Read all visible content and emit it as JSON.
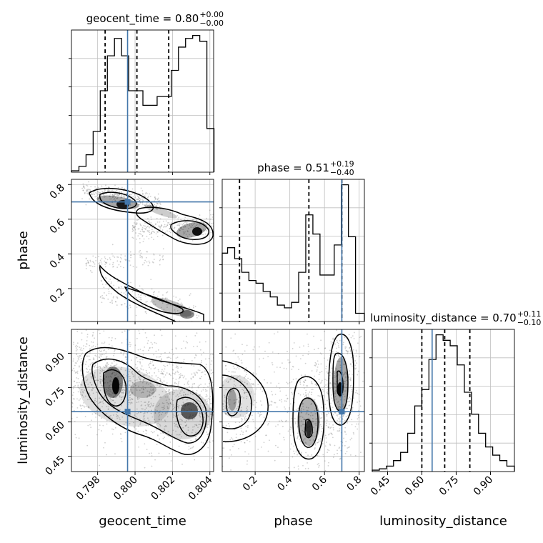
{
  "chart_data": {
    "type": "corner",
    "parameters": [
      "geocent_time",
      "phase",
      "luminosity_distance"
    ],
    "grid": true,
    "truth_color": "#4477aa",
    "truths": {
      "geocent_time": 0.7996,
      "phase": 0.7,
      "luminosity_distance": 0.645
    },
    "titles": [
      {
        "param": "geocent_time",
        "name": "geocent_time",
        "median": "0.80",
        "plus": "+0.00",
        "minus": "−0.00"
      },
      {
        "param": "phase",
        "name": "phase",
        "median": "0.51",
        "plus": "+0.19",
        "minus": "−0.40"
      },
      {
        "param": "luminosity_distance",
        "name": "luminosity_distance",
        "median": "0.70",
        "plus": "+0.11",
        "minus": "−0.10"
      }
    ],
    "ranges": {
      "geocent_time": [
        0.7966,
        0.8042
      ],
      "phase": [
        0.01,
        0.83
      ],
      "luminosity_distance": [
        0.383,
        1.005
      ]
    },
    "ticks": {
      "geocent_time": {
        "values": [
          0.798,
          0.8,
          0.802,
          0.804
        ],
        "labels": [
          "0.798",
          "0.800",
          "0.802",
          "0.804"
        ]
      },
      "phase": {
        "values": [
          0.2,
          0.4,
          0.6,
          0.8
        ],
        "labels": [
          "0.2",
          "0.4",
          "0.6",
          "0.8"
        ]
      },
      "luminosity_distance": {
        "values": [
          0.45,
          0.6,
          0.75,
          0.9
        ],
        "labels": [
          "0.45",
          "0.60",
          "0.75",
          "0.90"
        ]
      }
    },
    "quantiles": {
      "geocent_time": [
        0.7984,
        0.8001,
        0.8018
      ],
      "phase": [
        0.11,
        0.51,
        0.7
      ],
      "luminosity_distance": [
        0.6,
        0.7,
        0.81
      ]
    },
    "histograms": {
      "geocent_time": {
        "edges": [
          0.7966,
          0.797,
          0.79738,
          0.79776,
          0.79814,
          0.79852,
          0.7989,
          0.79928,
          0.79966,
          0.80004,
          0.80042,
          0.8008,
          0.80118,
          0.80156,
          0.80194,
          0.80232,
          0.8027,
          0.80308,
          0.80346,
          0.80384,
          0.80422
        ],
        "counts": [
          0.5,
          2,
          6,
          14,
          28,
          40,
          46,
          40,
          28,
          28,
          23,
          23,
          26,
          26,
          35,
          43,
          46,
          47,
          45,
          15
        ]
      },
      "phase": {
        "edges": [
          0.01,
          0.041,
          0.082,
          0.123,
          0.164,
          0.205,
          0.246,
          0.287,
          0.328,
          0.369,
          0.41,
          0.451,
          0.492,
          0.533,
          0.574,
          0.615,
          0.656,
          0.697,
          0.738,
          0.779,
          0.83
        ],
        "counts": [
          25,
          27,
          23,
          18,
          15,
          14,
          11,
          9,
          6,
          5,
          7,
          18,
          39,
          32,
          17,
          17,
          28,
          50,
          31,
          3
        ]
      },
      "luminosity_distance": {
        "edges": [
          0.383,
          0.414,
          0.445,
          0.476,
          0.507,
          0.538,
          0.569,
          0.6,
          0.631,
          0.662,
          0.693,
          0.724,
          0.755,
          0.786,
          0.817,
          0.848,
          0.879,
          0.91,
          0.941,
          0.972,
          1.005
        ],
        "counts": [
          1,
          2,
          4,
          8,
          14,
          28,
          48,
          60,
          82,
          100,
          96,
          92,
          78,
          58,
          42,
          28,
          18,
          12,
          8,
          4
        ]
      }
    }
  }
}
